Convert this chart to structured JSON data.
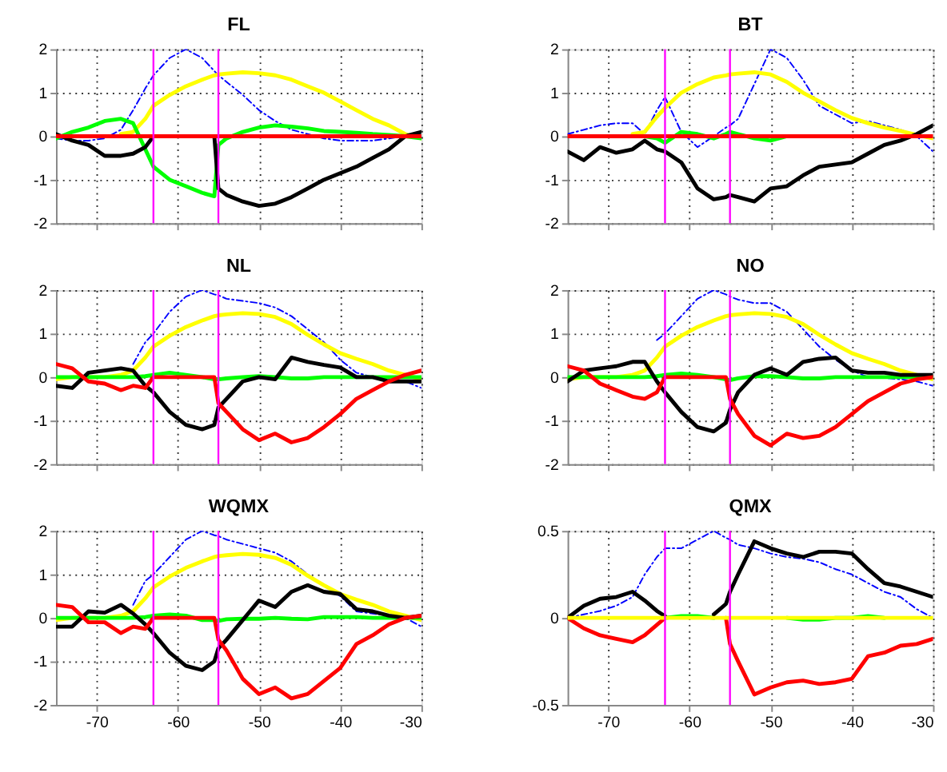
{
  "chart_data": [
    {
      "type": "line",
      "title": "FL",
      "x": [
        -75,
        -73,
        -71,
        -69,
        -67,
        -65.5,
        -64,
        -63,
        -61,
        -59,
        -57,
        -55.5,
        -55,
        -54,
        -52,
        -50,
        -48,
        -46,
        -44,
        -42,
        -40,
        -38,
        -36,
        -34,
        -32,
        -30
      ],
      "xlim": [
        -75,
        -30
      ],
      "xticks": [
        -70,
        -60,
        -50,
        -40,
        -30
      ],
      "ylim": [
        -2,
        2
      ],
      "yticks": [
        -2,
        -1,
        0,
        1,
        2
      ],
      "grid": true,
      "tick_labels": "y",
      "ref_lines": [
        {
          "axis": "x",
          "value": -63,
          "color": "#ff00ff"
        },
        {
          "axis": "x",
          "value": -55,
          "color": "#ff00ff"
        }
      ],
      "series": [
        {
          "color": "#0000ff",
          "line_style": "dashed",
          "values": [
            -0.05,
            -0.1,
            -0.1,
            -0.05,
            0.15,
            0.6,
            1.1,
            1.4,
            1.8,
            2.0,
            1.8,
            1.5,
            1.4,
            1.25,
            0.95,
            0.6,
            0.35,
            0.15,
            0.05,
            -0.05,
            -0.1,
            -0.1,
            -0.1,
            -0.05,
            0,
            0
          ]
        },
        {
          "color": "#ffff00",
          "values": [
            null,
            null,
            null,
            null,
            0.05,
            0.1,
            0.4,
            0.7,
            0.95,
            1.15,
            1.3,
            1.4,
            1.42,
            1.44,
            1.47,
            1.45,
            1.4,
            1.3,
            1.15,
            1.0,
            0.8,
            0.6,
            0.4,
            0.25,
            0.05,
            -0.05
          ]
        },
        {
          "color": "#00ff00",
          "values": [
            -0.05,
            0.1,
            0.2,
            0.35,
            0.4,
            0.3,
            -0.3,
            -0.7,
            -1.0,
            -1.15,
            -1.3,
            -1.38,
            -0.2,
            -0.05,
            0.1,
            0.2,
            0.25,
            0.22,
            0.18,
            0.12,
            0.1,
            0.08,
            0.05,
            0.03,
            0,
            -0.05
          ]
        },
        {
          "color": "#000000",
          "values": [
            0.05,
            -0.1,
            -0.2,
            -0.45,
            -0.45,
            -0.4,
            -0.25,
            0,
            0,
            0,
            0,
            0,
            -1.2,
            -1.35,
            -1.5,
            -1.6,
            -1.55,
            -1.4,
            -1.2,
            -1.0,
            -0.85,
            -0.7,
            -0.5,
            -0.3,
            0,
            0.1
          ]
        },
        {
          "color": "#ff0000",
          "values": [
            0,
            0,
            0,
            0,
            0,
            0,
            0,
            0,
            0,
            0,
            0,
            0,
            0,
            0,
            0,
            0,
            0,
            0,
            0,
            0,
            0,
            0,
            0,
            0,
            0,
            0
          ]
        }
      ]
    },
    {
      "type": "line",
      "title": "BT",
      "x": [
        -75,
        -73,
        -71,
        -69,
        -67,
        -65.5,
        -64,
        -63,
        -61,
        -59,
        -57,
        -55.5,
        -55,
        -54,
        -52,
        -50,
        -48,
        -46,
        -44,
        -42,
        -40,
        -38,
        -36,
        -34,
        -32,
        -30
      ],
      "xlim": [
        -75,
        -30
      ],
      "xticks": [
        -70,
        -60,
        -50,
        -40,
        -30
      ],
      "ylim": [
        -2,
        2
      ],
      "yticks": [
        -2,
        -1,
        0,
        1,
        2
      ],
      "grid": true,
      "tick_labels": "y",
      "ref_lines": [
        {
          "axis": "x",
          "value": -63,
          "color": "#ff00ff"
        },
        {
          "axis": "x",
          "value": -55,
          "color": "#ff00ff"
        }
      ],
      "series": [
        {
          "color": "#0000ff",
          "line_style": "dashed",
          "values": [
            0.05,
            0.15,
            0.25,
            0.3,
            0.3,
            0.05,
            0.6,
            0.9,
            0.1,
            -0.25,
            0,
            0.2,
            0.25,
            0.4,
            1.2,
            2.0,
            1.8,
            1.3,
            0.7,
            0.5,
            0.3,
            0.35,
            0.25,
            0.15,
            0,
            -0.35
          ]
        },
        {
          "color": "#ffff00",
          "values": [
            null,
            null,
            null,
            null,
            0.05,
            0.1,
            0.45,
            0.65,
            1.0,
            1.2,
            1.35,
            1.4,
            1.42,
            1.44,
            1.47,
            1.42,
            1.25,
            1.0,
            0.8,
            0.6,
            0.42,
            0.3,
            0.2,
            0.12,
            0.03,
            -0.05
          ]
        },
        {
          "color": "#00ff00",
          "values": [
            null,
            null,
            null,
            null,
            null,
            0,
            -0.05,
            -0.15,
            0.1,
            0.05,
            -0.05,
            0.05,
            0.1,
            0.05,
            -0.05,
            -0.1,
            0,
            null,
            null,
            null,
            null,
            null,
            null,
            null,
            null,
            null
          ]
        },
        {
          "color": "#000000",
          "values": [
            -0.35,
            -0.55,
            -0.25,
            -0.38,
            -0.3,
            -0.1,
            -0.3,
            -0.35,
            -0.6,
            -1.2,
            -1.45,
            -1.4,
            -1.35,
            -1.4,
            -1.5,
            -1.2,
            -1.15,
            -0.9,
            -0.7,
            -0.65,
            -0.6,
            -0.4,
            -0.2,
            -0.1,
            0.05,
            0.25
          ]
        },
        {
          "color": "#ff0000",
          "values": [
            0,
            0,
            0,
            0,
            0,
            0,
            0,
            0,
            0,
            0,
            0,
            0,
            0,
            0,
            0,
            0,
            0,
            0,
            0,
            0,
            0,
            0,
            0,
            0,
            0,
            0
          ]
        }
      ]
    },
    {
      "type": "line",
      "title": "NL",
      "x": [
        -75,
        -73,
        -71,
        -69,
        -67,
        -65.5,
        -64,
        -63,
        -61,
        -59,
        -57,
        -55.5,
        -55,
        -54,
        -52,
        -50,
        -48,
        -46,
        -44,
        -42,
        -40,
        -38,
        -36,
        -34,
        -32,
        -30
      ],
      "xlim": [
        -75,
        -30
      ],
      "xticks": [
        -70,
        -60,
        -50,
        -40,
        -30
      ],
      "ylim": [
        -2,
        2
      ],
      "yticks": [
        -2,
        -1,
        0,
        1,
        2
      ],
      "grid": true,
      "tick_labels": "y",
      "ref_lines": [
        {
          "axis": "x",
          "value": -63,
          "color": "#ff00ff"
        },
        {
          "axis": "x",
          "value": -55,
          "color": "#ff00ff"
        }
      ],
      "series": [
        {
          "color": "#0000ff",
          "line_style": "dashed",
          "values": [
            null,
            null,
            null,
            null,
            null,
            0.3,
            0.8,
            1.0,
            1.5,
            1.85,
            2.0,
            1.9,
            1.88,
            1.8,
            1.75,
            1.7,
            1.6,
            1.4,
            1.1,
            0.8,
            0.4,
            0.1,
            0,
            -0.05,
            -0.1,
            -0.25
          ]
        },
        {
          "color": "#ffff00",
          "values": [
            -0.05,
            0,
            0,
            0,
            0.05,
            0.15,
            0.45,
            0.7,
            0.95,
            1.15,
            1.3,
            1.4,
            1.42,
            1.44,
            1.47,
            1.45,
            1.38,
            1.22,
            0.97,
            0.75,
            0.55,
            0.42,
            0.3,
            0.15,
            0.05,
            -0.05
          ]
        },
        {
          "color": "#00ff00",
          "values": [
            0,
            0,
            0,
            0,
            0,
            0,
            0.02,
            0.05,
            0.1,
            0.05,
            0,
            -0.05,
            -0.05,
            -0.03,
            0,
            0.02,
            0,
            -0.03,
            -0.03,
            0,
            0,
            0,
            0,
            0,
            0,
            0
          ]
        },
        {
          "color": "#000000",
          "values": [
            -0.2,
            -0.25,
            0.1,
            0.15,
            0.2,
            0.15,
            -0.2,
            -0.35,
            -0.8,
            -1.1,
            -1.2,
            -1.1,
            -0.7,
            -0.5,
            -0.1,
            0,
            -0.05,
            0.45,
            0.35,
            0.28,
            0.22,
            0,
            0,
            -0.1,
            -0.1,
            -0.1
          ]
        },
        {
          "color": "#ff0000",
          "values": [
            0.3,
            0.2,
            -0.1,
            -0.15,
            -0.3,
            -0.2,
            -0.25,
            0,
            0,
            0,
            0,
            0,
            -0.6,
            -0.8,
            -1.2,
            -1.45,
            -1.3,
            -1.5,
            -1.4,
            -1.15,
            -0.85,
            -0.5,
            -0.3,
            -0.1,
            0.05,
            0.15
          ]
        }
      ]
    },
    {
      "type": "line",
      "title": "NO",
      "x": [
        -75,
        -73,
        -71,
        -69,
        -67,
        -65.5,
        -64,
        -63,
        -61,
        -59,
        -57,
        -55.5,
        -55,
        -54,
        -52,
        -50,
        -48,
        -46,
        -44,
        -42,
        -40,
        -38,
        -36,
        -34,
        -32,
        -30
      ],
      "xlim": [
        -75,
        -30
      ],
      "xticks": [
        -70,
        -60,
        -50,
        -40,
        -30
      ],
      "ylim": [
        -2,
        2
      ],
      "yticks": [
        -2,
        -1,
        0,
        1,
        2
      ],
      "grid": true,
      "tick_labels": "y",
      "ref_lines": [
        {
          "axis": "x",
          "value": -63,
          "color": "#ff00ff"
        },
        {
          "axis": "x",
          "value": -55,
          "color": "#ff00ff"
        }
      ],
      "series": [
        {
          "color": "#0000ff",
          "line_style": "dashed",
          "values": [
            null,
            null,
            null,
            null,
            null,
            null,
            0.85,
            1.0,
            1.4,
            1.8,
            2.0,
            1.9,
            1.85,
            1.78,
            1.7,
            1.7,
            1.5,
            1.1,
            0.7,
            0.4,
            0.15,
            0,
            -0.02,
            -0.05,
            -0.1,
            -0.2
          ]
        },
        {
          "color": "#ffff00",
          "values": [
            -0.05,
            0,
            0,
            0,
            0.05,
            0.15,
            0.45,
            0.7,
            0.95,
            1.15,
            1.3,
            1.4,
            1.42,
            1.44,
            1.47,
            1.45,
            1.38,
            1.22,
            0.97,
            0.75,
            0.55,
            0.42,
            0.3,
            0.15,
            0.05,
            -0.05
          ]
        },
        {
          "color": "#00ff00",
          "values": [
            0,
            0,
            0,
            0,
            0,
            0,
            0.02,
            0.05,
            0.08,
            0.05,
            0,
            -0.05,
            -0.07,
            -0.03,
            0.02,
            0.02,
            0,
            -0.03,
            -0.03,
            0,
            0,
            0,
            0,
            0,
            0,
            0
          ]
        },
        {
          "color": "#000000",
          "values": [
            -0.1,
            0.15,
            0.2,
            0.25,
            0.35,
            0.35,
            -0.1,
            -0.35,
            -0.8,
            -1.15,
            -1.25,
            -1.05,
            -0.75,
            -0.35,
            0.05,
            0.2,
            0.05,
            0.35,
            0.42,
            0.45,
            0.15,
            0.1,
            0.1,
            0.05,
            0.05,
            0.05
          ]
        },
        {
          "color": "#ff0000",
          "values": [
            0.25,
            0.15,
            -0.15,
            -0.3,
            -0.45,
            -0.5,
            -0.35,
            0,
            0,
            0,
            0,
            0,
            -0.5,
            -0.85,
            -1.35,
            -1.57,
            -1.3,
            -1.4,
            -1.35,
            -1.15,
            -0.85,
            -0.55,
            -0.35,
            -0.15,
            -0.05,
            0
          ]
        }
      ]
    },
    {
      "type": "line",
      "title": "WQMX",
      "x": [
        -75,
        -73,
        -71,
        -69,
        -67,
        -65.5,
        -64,
        -63,
        -61,
        -59,
        -57,
        -55.5,
        -55,
        -54,
        -52,
        -50,
        -48,
        -46,
        -44,
        -42,
        -40,
        -38,
        -36,
        -34,
        -32,
        -30
      ],
      "xlim": [
        -75,
        -30
      ],
      "xticks": [
        -70,
        -60,
        -50,
        -40,
        -30
      ],
      "ylim": [
        -2,
        2
      ],
      "yticks": [
        -2,
        -1,
        0,
        1,
        2
      ],
      "grid": true,
      "ref_lines": [
        {
          "axis": "x",
          "value": -63,
          "color": "#ff00ff"
        },
        {
          "axis": "x",
          "value": -55,
          "color": "#ff00ff"
        }
      ],
      "series": [
        {
          "color": "#0000ff",
          "line_style": "dashed",
          "values": [
            null,
            null,
            null,
            null,
            null,
            0.3,
            0.85,
            1.0,
            1.4,
            1.8,
            2.0,
            1.9,
            1.88,
            1.8,
            1.7,
            1.6,
            1.5,
            1.3,
            1.0,
            0.75,
            0.5,
            0.15,
            0.1,
            0.05,
            0,
            -0.2
          ]
        },
        {
          "color": "#ffff00",
          "values": [
            -0.05,
            0,
            0,
            0,
            0.05,
            0.15,
            0.45,
            0.7,
            0.95,
            1.15,
            1.3,
            1.4,
            1.42,
            1.44,
            1.47,
            1.45,
            1.38,
            1.22,
            0.97,
            0.75,
            0.55,
            0.42,
            0.3,
            0.15,
            0.05,
            -0.05
          ]
        },
        {
          "color": "#00ff00",
          "values": [
            0,
            0,
            0,
            0,
            0,
            0,
            0.02,
            0.05,
            0.08,
            0.05,
            -0.05,
            -0.05,
            -0.07,
            -0.03,
            -0.02,
            -0.02,
            0,
            -0.02,
            -0.03,
            0.02,
            0.02,
            0.02,
            0,
            0,
            0,
            0
          ]
        },
        {
          "color": "#000000",
          "values": [
            -0.2,
            -0.2,
            0.15,
            0.12,
            0.3,
            0.1,
            -0.15,
            -0.35,
            -0.8,
            -1.1,
            -1.2,
            -1.0,
            -0.7,
            -0.5,
            -0.05,
            0.4,
            0.25,
            0.6,
            0.75,
            0.6,
            0.55,
            0.2,
            0.15,
            0.05,
            0,
            0.05
          ]
        },
        {
          "color": "#ff0000",
          "values": [
            0.3,
            0.25,
            -0.1,
            -0.1,
            -0.35,
            -0.2,
            -0.25,
            0,
            0,
            0,
            0,
            0,
            -0.5,
            -0.75,
            -1.4,
            -1.75,
            -1.6,
            -1.85,
            -1.75,
            -1.45,
            -1.15,
            -0.6,
            -0.4,
            -0.15,
            0,
            0.05
          ]
        }
      ]
    },
    {
      "type": "line",
      "title": "QMX",
      "x": [
        -75,
        -73,
        -71,
        -69,
        -67,
        -65.5,
        -64,
        -63,
        -61,
        -59,
        -57,
        -55.5,
        -55,
        -54,
        -52,
        -50,
        -48,
        -46,
        -44,
        -42,
        -40,
        -38,
        -36,
        -34,
        -32,
        -30
      ],
      "xlim": [
        -75,
        -30
      ],
      "xticks": [
        -70,
        -60,
        -50,
        -40,
        -30
      ],
      "ylim": [
        -0.5,
        0.5
      ],
      "yticks": [
        -0.5,
        0,
        0.5
      ],
      "grid": true,
      "ref_lines": [
        {
          "axis": "x",
          "value": -63,
          "color": "#ff00ff"
        },
        {
          "axis": "x",
          "value": -55,
          "color": "#ff00ff"
        }
      ],
      "series": [
        {
          "color": "#0000ff",
          "line_style": "dashed",
          "values": [
            0,
            0.02,
            0.04,
            0.07,
            0.12,
            0.25,
            0.35,
            0.4,
            0.4,
            0.45,
            0.5,
            0.46,
            0.45,
            0.42,
            0.4,
            0.37,
            0.35,
            0.34,
            0.32,
            0.28,
            0.25,
            0.2,
            0.15,
            0.12,
            0.05,
            0
          ]
        },
        {
          "color": "#00ff00",
          "values": [
            null,
            null,
            null,
            null,
            null,
            null,
            null,
            0,
            0.01,
            0.01,
            0,
            null,
            null,
            null,
            null,
            null,
            0,
            -0.01,
            -0.01,
            0,
            0,
            0.01,
            0,
            null,
            null,
            null
          ]
        },
        {
          "color": "#000000",
          "values": [
            0,
            0.07,
            0.11,
            0.12,
            0.15,
            0.1,
            0.04,
            0.01,
            null,
            null,
            0.02,
            0.08,
            0.15,
            0.25,
            0.44,
            0.4,
            0.37,
            0.35,
            0.38,
            0.38,
            0.37,
            0.28,
            0.2,
            0.18,
            0.15,
            0.12
          ]
        },
        {
          "color": "#ff0000",
          "values": [
            0,
            -0.06,
            -0.1,
            -0.12,
            -0.14,
            -0.1,
            -0.04,
            0,
            null,
            null,
            null,
            0,
            -0.15,
            -0.25,
            -0.44,
            -0.4,
            -0.37,
            -0.36,
            -0.38,
            -0.37,
            -0.35,
            -0.22,
            -0.2,
            -0.16,
            -0.15,
            -0.12
          ]
        },
        {
          "color": "#ffff00",
          "values": [
            0,
            0,
            0,
            0,
            0,
            0,
            0,
            0,
            0,
            0,
            0,
            0,
            0,
            0,
            0,
            0,
            0,
            0,
            0,
            0,
            0,
            0,
            0,
            0,
            0,
            0
          ]
        }
      ]
    }
  ]
}
